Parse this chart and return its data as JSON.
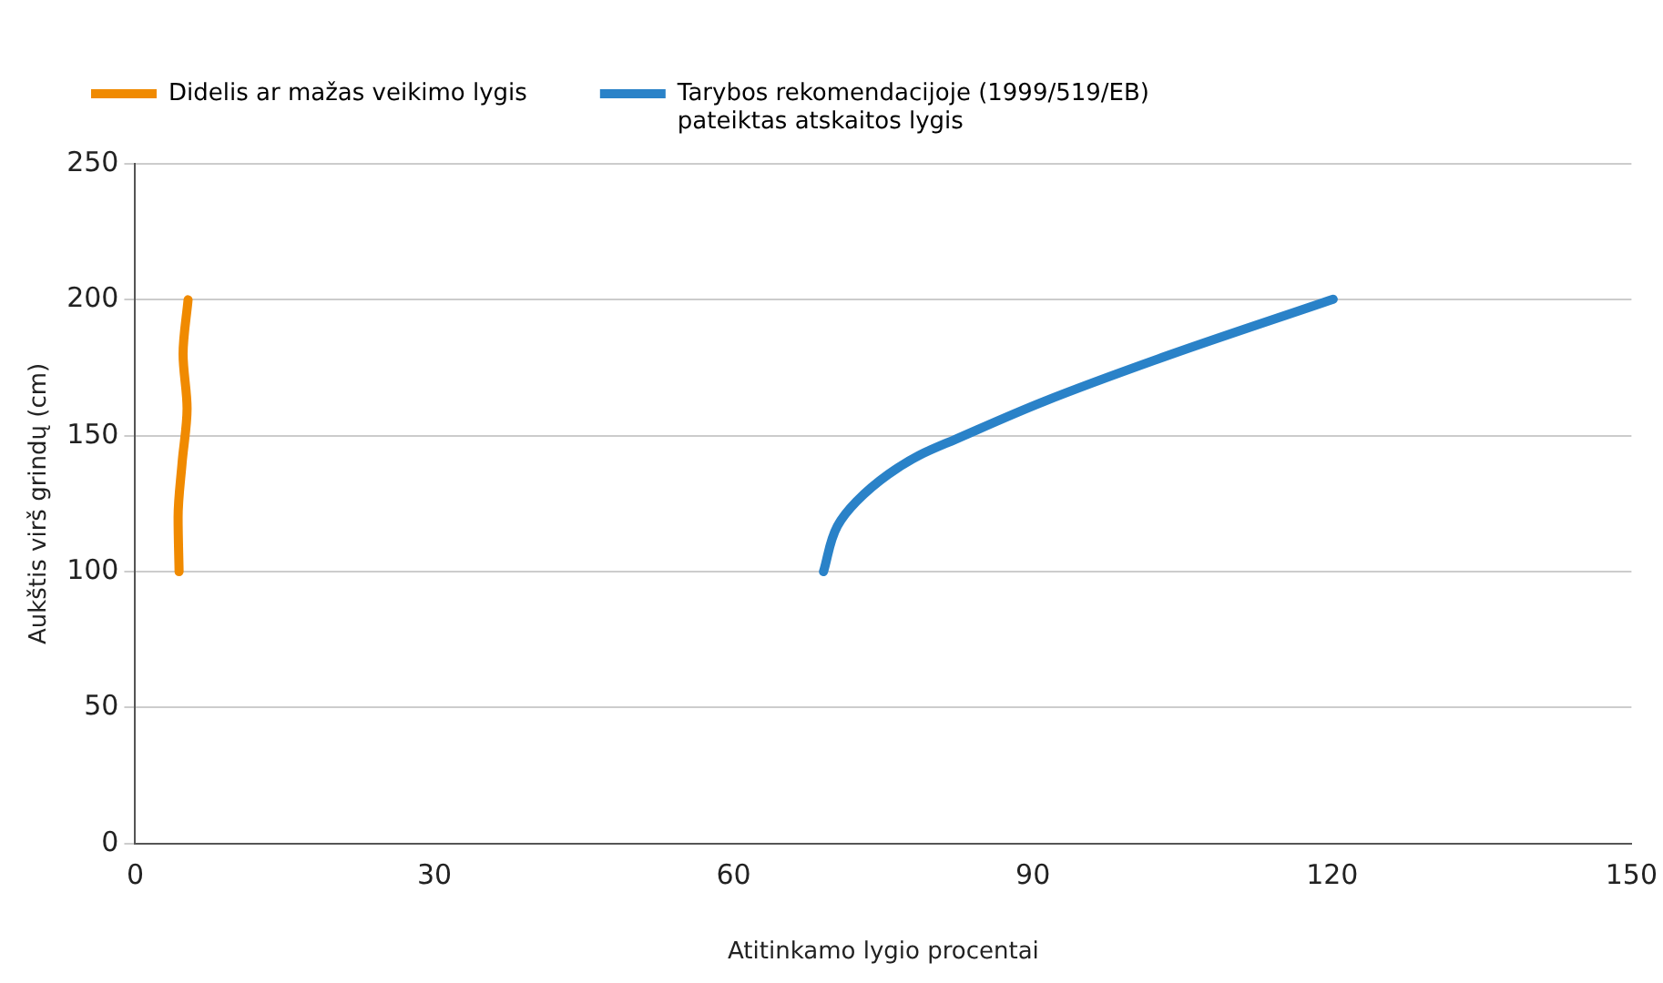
{
  "chart_data": {
    "type": "line",
    "xlabel": "Atitinkamo lygio procentai",
    "ylabel": "Aukštis virš grindų (cm)",
    "series": [
      {
        "name": "Didelis ar mažas veikimo lygis",
        "color": "#f08a00",
        "x": [
          4.4,
          4.3,
          4.7,
          5.2,
          4.8,
          5.3
        ],
        "values": [
          100,
          120,
          140,
          160,
          180,
          200
        ]
      },
      {
        "name": "Tarybos rekomendacijoje (1999/519/EB) pateiktas atskaitos lygis",
        "color": "#2a82c8",
        "x": [
          69.0,
          70.4,
          72.3,
          75.5,
          78.6,
          82.3,
          91.1,
          103.6,
          120.1
        ],
        "values": [
          100,
          116.8,
          125.8,
          135.8,
          142.8,
          148.8,
          162.6,
          179.6,
          200.2
        ]
      }
    ],
    "xlim": [
      0,
      150
    ],
    "xticks": [
      0,
      30,
      60,
      90,
      120,
      150
    ],
    "ylim": [
      0,
      250
    ],
    "yticks": [
      0,
      50,
      100,
      150,
      200,
      250
    ],
    "grid": "y",
    "legend": "top",
    "marker": "none",
    "line_style": "solid"
  }
}
